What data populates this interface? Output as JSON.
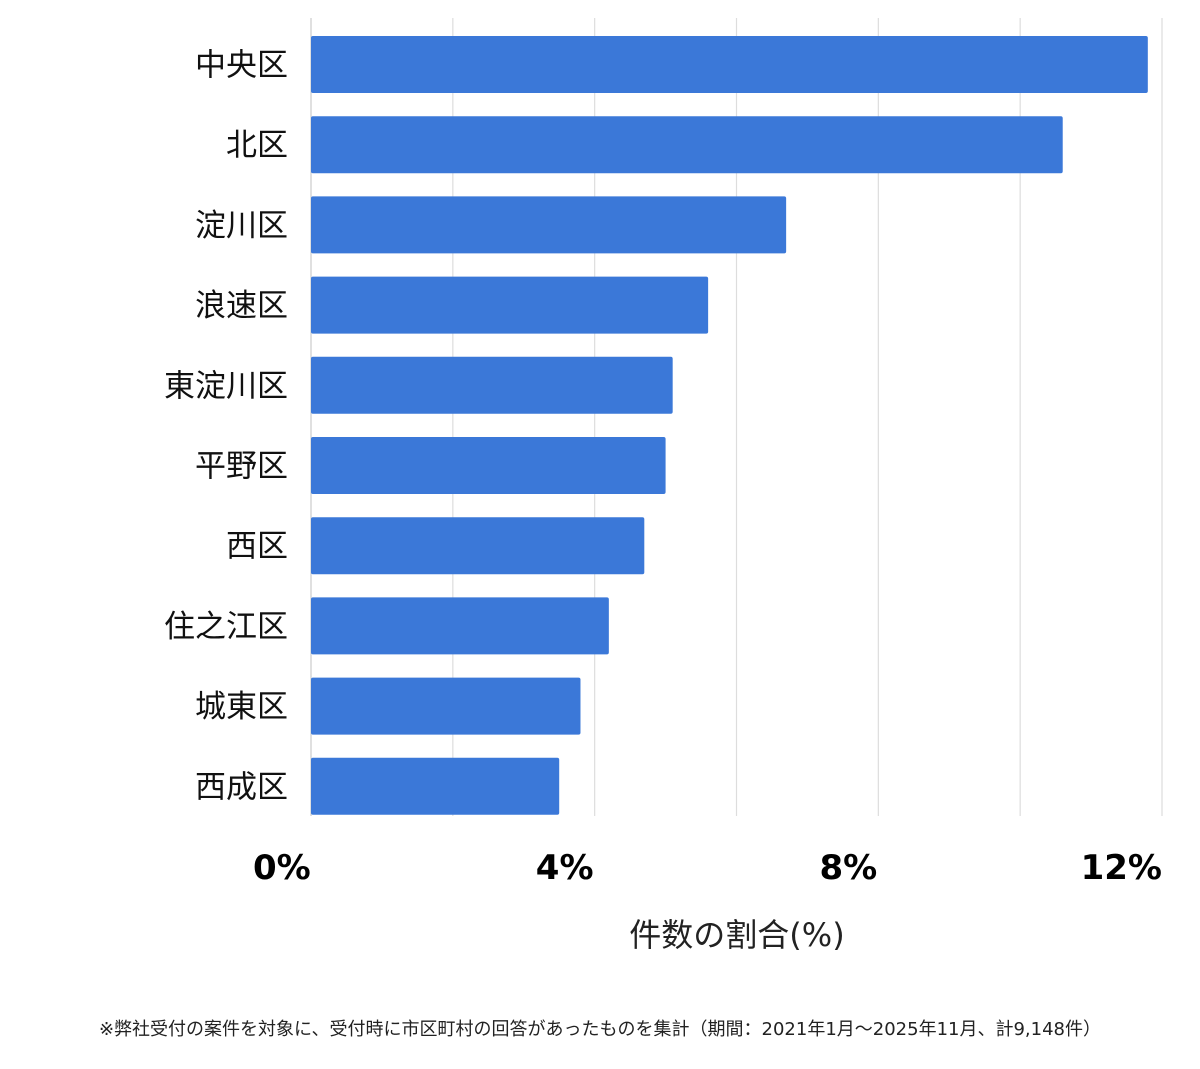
{
  "chart_data": {
    "type": "bar",
    "orientation": "horizontal",
    "categories": [
      "中央区",
      "北区",
      "淀川区",
      "浪速区",
      "東淀川区",
      "平野区",
      "西区",
      "住之江区",
      "城東区",
      "西成区"
    ],
    "values": [
      11.8,
      10.6,
      6.7,
      5.6,
      5.1,
      5.0,
      4.7,
      4.2,
      3.8,
      3.5
    ],
    "xlim": [
      0,
      12
    ],
    "x_ticks": [
      0,
      4,
      8,
      12
    ],
    "x_tick_labels": [
      "0%",
      "4%",
      "8%",
      "12%"
    ],
    "xlabel": "件数の割合(%)",
    "ylabel": "",
    "title": "",
    "grid": true,
    "legend": "none",
    "bar_color": "#3b78d8",
    "grid_color": "#dddddd"
  },
  "footnote": "※弊社受付の案件を対象に、受付時に市区町村の回答があったものを集計（期間：2021年1月〜2025年11月、計9,148件）"
}
